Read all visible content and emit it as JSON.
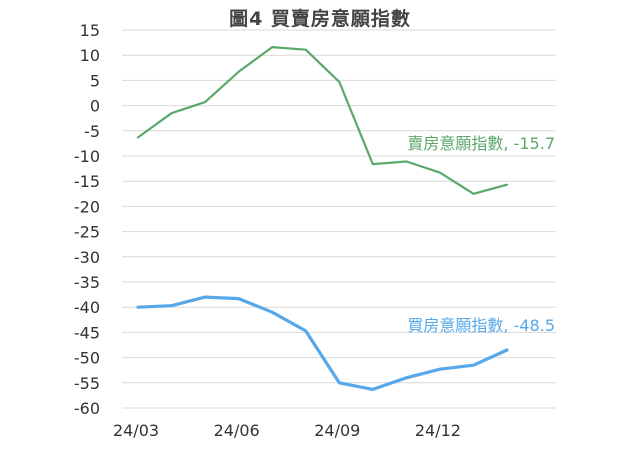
{
  "chart_data": {
    "type": "line",
    "title": "圖4  買賣房意願指數",
    "xlabel": "",
    "ylabel": "",
    "ylim": [
      -60,
      15
    ],
    "yticks": [
      15,
      10,
      5,
      0,
      -5,
      -10,
      -15,
      -20,
      -25,
      -30,
      -35,
      -40,
      -45,
      -50,
      -55,
      -60
    ],
    "x": [
      "24/03",
      "24/04",
      "24/05",
      "24/06",
      "24/07",
      "24/08",
      "24/09",
      "24/10",
      "24/11",
      "24/12",
      "25/01",
      "25/02"
    ],
    "xtick_labels": [
      "24/03",
      "24/06",
      "24/09",
      "24/12"
    ],
    "grid": "horizontal",
    "legend": "none",
    "series": [
      {
        "name": "賣房意願指數",
        "label": "賣房意願指數, -15.7",
        "color": "#5aa86a",
        "values": [
          -6.3,
          -1.5,
          0.7,
          6.7,
          11.6,
          11.1,
          4.7,
          -11.6,
          -11.1,
          -13.3,
          -17.5,
          -15.7
        ]
      },
      {
        "name": "買房意願指數",
        "label": "買房意願指數, -48.5",
        "color": "#56a8ea",
        "values": [
          -40.0,
          -39.7,
          -38.0,
          -38.3,
          -41.0,
          -44.7,
          -55.0,
          -56.3,
          -54.0,
          -52.3,
          -51.5,
          -48.5
        ]
      }
    ]
  }
}
